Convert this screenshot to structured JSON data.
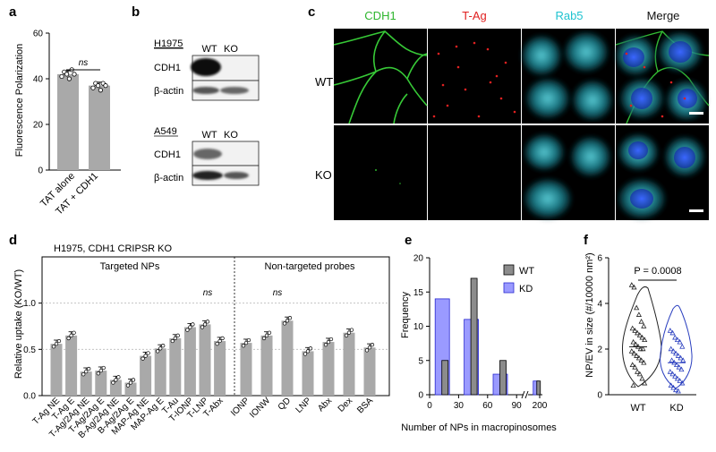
{
  "panels": {
    "a": "a",
    "b": "b",
    "c": "c",
    "d": "d",
    "e": "e",
    "f": "f"
  },
  "panel_a": {
    "chart_data": {
      "type": "bar",
      "categories": [
        "TAT alone",
        "TAT + CDH1"
      ],
      "values": [
        42,
        37
      ],
      "ylabel": "Fluorescence Polarization",
      "ylim": [
        0,
        60
      ],
      "yticks": [
        "0",
        "20",
        "40",
        "60"
      ],
      "annotation": "ns"
    }
  },
  "panel_b": {
    "blots": [
      {
        "cell_line": "H1975",
        "lanes": [
          "WT",
          "KO"
        ],
        "rows": [
          "CDH1",
          "β-actin"
        ]
      },
      {
        "cell_line": "A549",
        "lanes": [
          "WT",
          "KO"
        ],
        "rows": [
          "CDH1",
          "β-actin"
        ]
      }
    ]
  },
  "panel_c": {
    "columns": [
      {
        "label": "CDH1",
        "color": "#2db52d"
      },
      {
        "label": "T-Ag",
        "color": "#e02020"
      },
      {
        "label": "Rab5",
        "color": "#1fc3d0"
      },
      {
        "label": "Merge",
        "color": "#111111"
      }
    ],
    "rows": [
      "WT",
      "KO"
    ]
  },
  "panel_d": {
    "title": "H1975, CDH1 CRIPSR KO",
    "group_labels": [
      "Targeted NPs",
      "Non-targeted probes"
    ],
    "ns_labels": [
      "ns",
      "ns"
    ],
    "chart_data": {
      "type": "bar",
      "ylabel": "Relative uptake (KO/WT)",
      "ylim": [
        0,
        1.5
      ],
      "yticks": [
        "0.0",
        "0.5",
        "1.0"
      ],
      "categories": [
        "T-Ag NE",
        "T-Ag E",
        "T-Ag/2Ag NE",
        "T-Ag/2Ag E",
        "B-Ag/2Ag NE",
        "B-Ag/2Ag E",
        "MAP-Ag NE",
        "MAP-Ag E",
        "T-Au",
        "T-IONP",
        "T-LNP",
        "T-Abx",
        "IONP",
        "IONW",
        "QD",
        "LNP",
        "Abx",
        "Dex",
        "BSA"
      ],
      "values": [
        0.56,
        0.65,
        0.26,
        0.27,
        0.17,
        0.14,
        0.43,
        0.51,
        0.62,
        0.74,
        0.77,
        0.59,
        0.57,
        0.65,
        0.81,
        0.48,
        0.58,
        0.68,
        0.52
      ]
    }
  },
  "panel_e": {
    "chart_data": {
      "type": "bar",
      "xlabel": "Number of NPs in macropinosomes",
      "ylabel": "Frequency",
      "ylim": [
        0,
        20
      ],
      "yticks": [
        "0",
        "5",
        "10",
        "15",
        "20"
      ],
      "xticks": [
        "0",
        "30",
        "60",
        "90",
        "200"
      ],
      "series": [
        {
          "name": "WT",
          "color": "#8c8c8c",
          "x": [
            15,
            45,
            75,
            195
          ],
          "values": [
            5,
            17,
            5,
            2
          ]
        },
        {
          "name": "KD",
          "color": "#9a9aff",
          "x": [
            15,
            45,
            75,
            195
          ],
          "values": [
            14,
            11,
            3,
            2
          ]
        }
      ]
    }
  },
  "panel_f": {
    "chart_data": {
      "type": "scatter",
      "ylabel": "NP/EV in size (#/10000 nm²)",
      "ylim": [
        0,
        6
      ],
      "yticks": [
        "0",
        "2",
        "4",
        "6"
      ],
      "categories": [
        "WT",
        "KD"
      ],
      "annotation": "P = 0.0008",
      "series": [
        {
          "name": "WT",
          "color": "#222222",
          "values": [
            4.8,
            4.7,
            3.8,
            3.5,
            3.2,
            3.0,
            2.9,
            2.8,
            2.7,
            2.6,
            2.5,
            2.4,
            2.3,
            2.2,
            2.1,
            2.0,
            2.0,
            1.9,
            1.8,
            1.7,
            1.6,
            1.5,
            1.4,
            1.3,
            1.2,
            1.0,
            0.9,
            0.7,
            0.5,
            0.4
          ]
        },
        {
          "name": "KD",
          "color": "#2a3fbf",
          "values": [
            2.8,
            2.7,
            2.5,
            2.4,
            2.3,
            2.1,
            2.0,
            1.9,
            1.8,
            1.7,
            1.6,
            1.5,
            1.5,
            1.4,
            1.3,
            1.2,
            1.1,
            1.0,
            0.9,
            0.8,
            0.7,
            0.6,
            0.5,
            0.4,
            0.3,
            0.2,
            0.15
          ]
        }
      ]
    }
  }
}
